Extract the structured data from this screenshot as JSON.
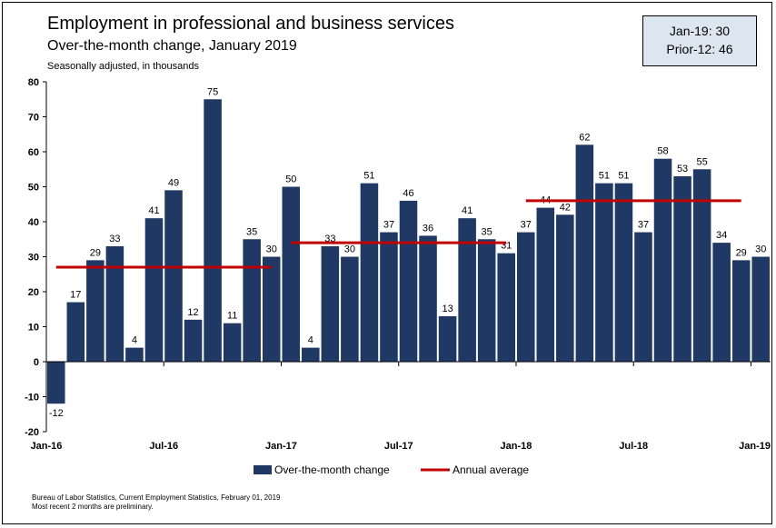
{
  "header": {
    "title": "Employment in professional and business services",
    "subtitle": "Over-the-month change, January 2019",
    "units": "Seasonally adjusted, in thousands"
  },
  "callout": {
    "line1": "Jan-19: 30",
    "line2": "Prior-12: 46"
  },
  "footer": {
    "source": "Bureau of Labor Statistics, Current Employment Statistics, February 01, 2019",
    "note": "Most recent 2 months are preliminary."
  },
  "chart_data": {
    "type": "bar",
    "categories": [
      "Jan-16",
      "Feb-16",
      "Mar-16",
      "Apr-16",
      "May-16",
      "Jun-16",
      "Jul-16",
      "Aug-16",
      "Sep-16",
      "Oct-16",
      "Nov-16",
      "Dec-16",
      "Jan-17",
      "Feb-17",
      "Mar-17",
      "Apr-17",
      "May-17",
      "Jun-17",
      "Jul-17",
      "Aug-17",
      "Sep-17",
      "Oct-17",
      "Nov-17",
      "Dec-17",
      "Jan-18",
      "Feb-18",
      "Mar-18",
      "Apr-18",
      "May-18",
      "Jun-18",
      "Jul-18",
      "Aug-18",
      "Sep-18",
      "Oct-18",
      "Nov-18",
      "Dec-18",
      "Jan-19"
    ],
    "x_tick_labels": [
      "Jan-16",
      "Jul-16",
      "Jan-17",
      "Jul-17",
      "Jan-18",
      "Jul-18",
      "Jan-19"
    ],
    "series": [
      {
        "name": "Over-the-month change",
        "color": "#1f3864",
        "values": [
          -12,
          17,
          29,
          33,
          4,
          41,
          49,
          12,
          75,
          11,
          35,
          30,
          50,
          4,
          33,
          30,
          51,
          37,
          46,
          36,
          13,
          41,
          35,
          31,
          37,
          44,
          42,
          62,
          51,
          51,
          37,
          58,
          53,
          55,
          34,
          29,
          30
        ]
      },
      {
        "name": "Annual average",
        "color": "#c00000",
        "segments": [
          {
            "start": "Jan-16",
            "end": "Dec-16",
            "value": 27
          },
          {
            "start": "Jan-17",
            "end": "Dec-17",
            "value": 34
          },
          {
            "start": "Jan-18",
            "end": "Dec-18",
            "value": 46
          }
        ]
      }
    ],
    "ylim": [
      -20,
      80
    ],
    "yticks": [
      -20,
      -10,
      0,
      10,
      20,
      30,
      40,
      50,
      60,
      70,
      80
    ],
    "grid": false,
    "legend": "bottom"
  }
}
